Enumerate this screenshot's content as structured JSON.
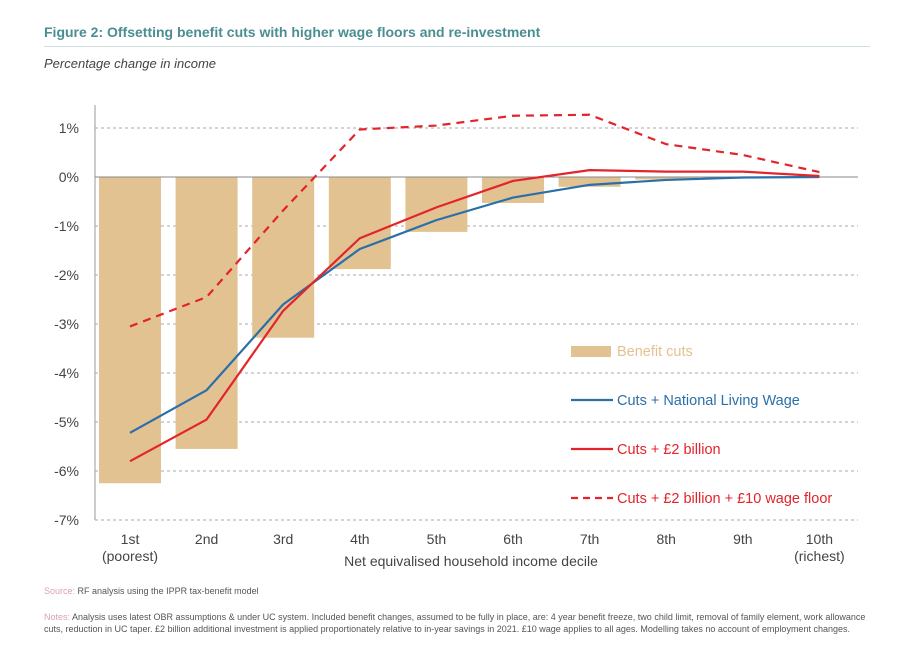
{
  "title": "Figure 2:  Offsetting benefit cuts with higher wage floors and re-investment",
  "subtitle": "Percentage change in income",
  "source_label": "Source:",
  "source": " RF analysis using the IPPR tax-benefit model",
  "notes_label": "Notes:",
  "notes": " Analysis uses latest OBR assumptions & under UC system. Included benefit changes, assumed to be fully in place, are: 4 year benefit freeze, two child limit, removal of family element, work allowance cuts, reduction in UC taper. £2 billion additional investment is applied proportionately relative to in-year savings in 2021. £10 wage applies to all ages. Modelling takes no account of employment changes.",
  "chart_data": {
    "type": "bar+line",
    "xlabel": "Net equivalised household income decile",
    "ylabel": "Percentage change in income",
    "categories": [
      "1st",
      "2nd",
      "3rd",
      "4th",
      "5th",
      "6th",
      "7th",
      "8th",
      "9th",
      "10th"
    ],
    "category_sublabels": [
      "(poorest)",
      "",
      "",
      "",
      "",
      "",
      "",
      "",
      "",
      "(richest)"
    ],
    "ylim": [
      -7,
      1.5
    ],
    "yticks": [
      1,
      0,
      -1,
      -2,
      -3,
      -4,
      -5,
      -6,
      -7
    ],
    "ytick_labels": [
      "1%",
      "0%",
      "-1%",
      "-2%",
      "-3%",
      "-4%",
      "-5%",
      "-6%",
      "-7%"
    ],
    "grid": true,
    "legend_position": "bottom-right",
    "series": [
      {
        "name": "Benefit cuts",
        "kind": "bar",
        "color": "#e2c291",
        "values": [
          -6.25,
          -5.55,
          -3.28,
          -1.88,
          -1.12,
          -0.53,
          -0.2,
          -0.05,
          -0.02,
          0
        ]
      },
      {
        "name": "Cuts + National Living Wage",
        "kind": "line",
        "color": "#2a6fa8",
        "values": [
          -5.22,
          -4.35,
          -2.6,
          -1.47,
          -0.88,
          -0.42,
          -0.16,
          -0.06,
          -0.01,
          0
        ]
      },
      {
        "name": "Cuts + £2 billion",
        "kind": "line",
        "color": "#e3242b",
        "values": [
          -5.8,
          -4.95,
          -2.73,
          -1.25,
          -0.62,
          -0.08,
          0.14,
          0.11,
          0.11,
          0.02
        ]
      },
      {
        "name": "Cuts + £2 billion + £10 wage floor",
        "kind": "dashed",
        "color": "#e3242b",
        "values": [
          -3.05,
          -2.45,
          -0.68,
          0.97,
          1.05,
          1.25,
          1.27,
          0.67,
          0.45,
          0.1
        ]
      }
    ]
  }
}
